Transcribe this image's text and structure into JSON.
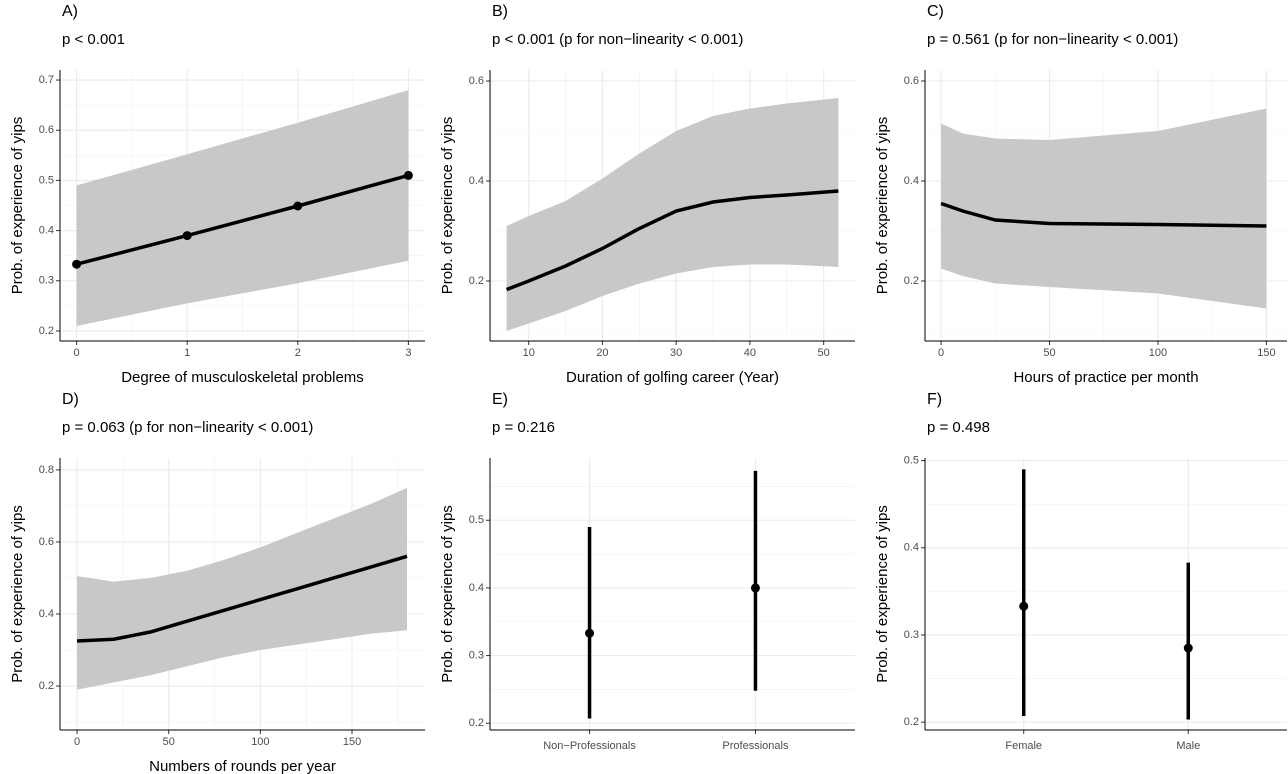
{
  "chart_data": [
    {
      "type": "line",
      "title": "A)",
      "subtitle": "p < 0.001",
      "xlabel": "Degree of musculoskeletal problems",
      "ylabel": "Prob. of experience of yips",
      "x": [
        0,
        1,
        2,
        3
      ],
      "values": [
        0.333,
        0.39,
        0.449,
        0.51
      ],
      "lower": [
        0.21,
        0.255,
        0.295,
        0.34
      ],
      "upper": [
        0.49,
        0.552,
        0.615,
        0.68
      ],
      "markers": true,
      "xlim": [
        -0.15,
        3.15
      ],
      "ylim": [
        0.18,
        0.72
      ],
      "xticks": [
        0,
        1,
        2,
        3
      ],
      "yticks": [
        0.2,
        0.3,
        0.4,
        0.5,
        0.6,
        0.7
      ],
      "line_color": "#000000",
      "band_color": "#c8c8c8",
      "grid": true
    },
    {
      "type": "line",
      "title": "B)",
      "subtitle": "p < 0.001 (p for non−linearity < 0.001)",
      "xlabel": "Duration of golfing career (Year)",
      "ylabel": "Prob. of experience of yips",
      "x": [
        7,
        10,
        15,
        20,
        25,
        30,
        35,
        40,
        45,
        52
      ],
      "values": [
        0.183,
        0.2,
        0.23,
        0.265,
        0.305,
        0.34,
        0.358,
        0.367,
        0.372,
        0.38
      ],
      "lower": [
        0.1,
        0.115,
        0.14,
        0.17,
        0.195,
        0.215,
        0.228,
        0.233,
        0.233,
        0.228
      ],
      "upper": [
        0.31,
        0.33,
        0.36,
        0.405,
        0.455,
        0.5,
        0.53,
        0.545,
        0.555,
        0.566
      ],
      "markers": false,
      "xlim": [
        4.75,
        54.25
      ],
      "ylim": [
        0.08,
        0.622
      ],
      "xticks": [
        10,
        20,
        30,
        40,
        50
      ],
      "yticks": [
        0.2,
        0.4,
        0.6
      ],
      "line_color": "#000000",
      "band_color": "#c8c8c8",
      "grid": true
    },
    {
      "type": "line",
      "title": "C)",
      "subtitle": "p = 0.561 (p for non−linearity < 0.001)",
      "xlabel": "Hours of practice per month",
      "ylabel": "Prob. of experience of yips",
      "x": [
        0,
        10,
        25,
        50,
        100,
        150
      ],
      "values": [
        0.355,
        0.34,
        0.322,
        0.315,
        0.313,
        0.31
      ],
      "lower": [
        0.225,
        0.21,
        0.195,
        0.188,
        0.175,
        0.145
      ],
      "upper": [
        0.515,
        0.495,
        0.485,
        0.482,
        0.5,
        0.545
      ],
      "markers": false,
      "xlim": [
        -7.4,
        159.5
      ],
      "ylim": [
        0.08,
        0.622
      ],
      "xticks": [
        0,
        50,
        100,
        150
      ],
      "yticks": [
        0.2,
        0.4,
        0.6
      ],
      "line_color": "#000000",
      "band_color": "#c8c8c8",
      "grid": true
    },
    {
      "type": "line",
      "title": "D)",
      "subtitle": "p = 0.063 (p for non−linearity < 0.001)",
      "xlabel": "Numbers of rounds per year",
      "ylabel": "Prob. of experience of yips",
      "x": [
        0,
        20,
        40,
        60,
        80,
        100,
        120,
        140,
        160,
        180
      ],
      "values": [
        0.325,
        0.33,
        0.35,
        0.38,
        0.41,
        0.44,
        0.47,
        0.5,
        0.53,
        0.56
      ],
      "lower": [
        0.19,
        0.21,
        0.23,
        0.255,
        0.28,
        0.3,
        0.315,
        0.33,
        0.345,
        0.355
      ],
      "upper": [
        0.505,
        0.49,
        0.5,
        0.52,
        0.55,
        0.585,
        0.625,
        0.665,
        0.705,
        0.75
      ],
      "markers": false,
      "xlim": [
        -9.3,
        189.8
      ],
      "ylim": [
        0.078,
        0.833
      ],
      "xticks": [
        0,
        50,
        100,
        150
      ],
      "yticks": [
        0.2,
        0.4,
        0.6,
        0.8
      ],
      "line_color": "#000000",
      "band_color": "#c8c8c8",
      "grid": true
    },
    {
      "type": "pointrange",
      "title": "E)",
      "subtitle": "p = 0.216",
      "ylabel": "Prob. of experience of yips",
      "categories": [
        "Non−Professionals",
        "Professionals"
      ],
      "values": [
        0.333,
        0.4
      ],
      "lower": [
        0.207,
        0.248
      ],
      "upper": [
        0.49,
        0.573
      ],
      "ylim": [
        0.19,
        0.592
      ],
      "yticks": [
        0.2,
        0.3,
        0.4,
        0.5
      ],
      "line_color": "#000000",
      "grid": true
    },
    {
      "type": "pointrange",
      "title": "F)",
      "subtitle": "p = 0.498",
      "ylabel": "Prob. of experience of yips",
      "categories": [
        "Female",
        "Male"
      ],
      "values": [
        0.333,
        0.285
      ],
      "lower": [
        0.207,
        0.203
      ],
      "upper": [
        0.49,
        0.383
      ],
      "ylim": [
        0.191,
        0.503
      ],
      "yticks": [
        0.2,
        0.3,
        0.4,
        0.5
      ],
      "line_color": "#000000",
      "grid": true
    }
  ]
}
